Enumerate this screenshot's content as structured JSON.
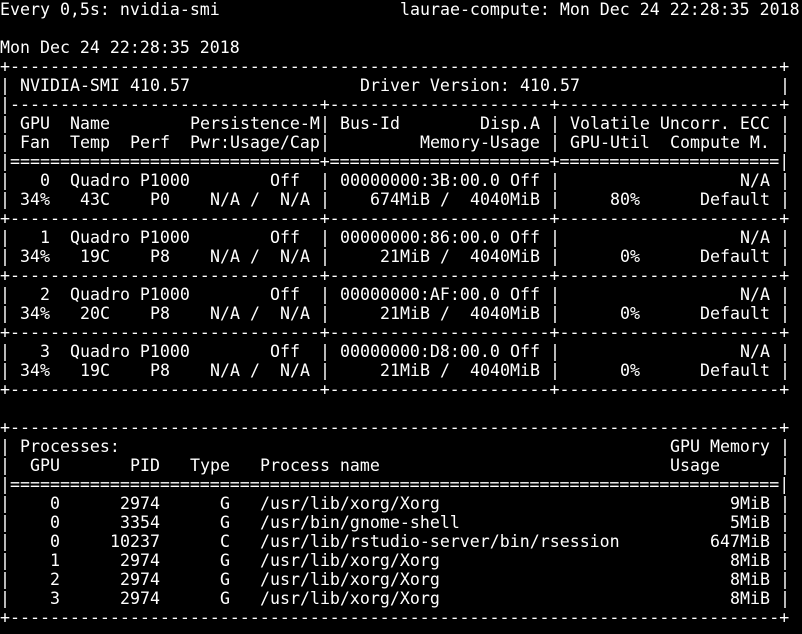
{
  "watch": {
    "command": "Every 0,5s: nvidia-smi",
    "host_time": "laurae-compute: Mon Dec 24 22:28:35 2018"
  },
  "timestamp": "Mon Dec 24 22:28:35 2018",
  "chars": {
    "pipe": "|"
  },
  "borders": {
    "top": "+-----------------------------------------------------------------------------+",
    "header_sep": "|-------------------------------+----------------------+----------------------+",
    "header_double": "|===============================+======================+======================|",
    "gpu_sep": "+-------------------------------+----------------------+----------------------+",
    "proc_double": "|=============================================================================|"
  },
  "header": {
    "smi_label": "NVIDIA-SMI",
    "smi_version": "410.57",
    "driver_label": "Driver Version:",
    "driver_version": "410.57"
  },
  "columns": {
    "gpu": "GPU",
    "name": "Name",
    "persistence": "Persistence-M",
    "bus_id": "Bus-Id",
    "disp": "Disp.A",
    "ecc": "Volatile Uncorr. ECC",
    "fan": "Fan",
    "temp": "Temp",
    "perf": "Perf",
    "power": "Pwr:Usage/Cap",
    "memory": "Memory-Usage",
    "util": "GPU-Util",
    "compute": "Compute M."
  },
  "gpus": [
    {
      "index": "0",
      "name": "Quadro P1000",
      "persistence": "Off",
      "bus_id": "00000000:3B:00.0",
      "disp": "Off",
      "ecc": "N/A",
      "fan": "34%",
      "temp": "43C",
      "perf": "P0",
      "pwr_usage": "N/A",
      "slash": "/",
      "pwr_cap": "N/A",
      "mem_used": "674MiB",
      "mem_total": "4040MiB",
      "util": "80%",
      "compute": "Default"
    },
    {
      "index": "1",
      "name": "Quadro P1000",
      "persistence": "Off",
      "bus_id": "00000000:86:00.0",
      "disp": "Off",
      "ecc": "N/A",
      "fan": "34%",
      "temp": "19C",
      "perf": "P8",
      "pwr_usage": "N/A",
      "slash": "/",
      "pwr_cap": "N/A",
      "mem_used": "21MiB",
      "mem_total": "4040MiB",
      "util": "0%",
      "compute": "Default"
    },
    {
      "index": "2",
      "name": "Quadro P1000",
      "persistence": "Off",
      "bus_id": "00000000:AF:00.0",
      "disp": "Off",
      "ecc": "N/A",
      "fan": "34%",
      "temp": "20C",
      "perf": "P8",
      "pwr_usage": "N/A",
      "slash": "/",
      "pwr_cap": "N/A",
      "mem_used": "21MiB",
      "mem_total": "4040MiB",
      "util": "0%",
      "compute": "Default"
    },
    {
      "index": "3",
      "name": "Quadro P1000",
      "persistence": "Off",
      "bus_id": "00000000:D8:00.0",
      "disp": "Off",
      "ecc": "N/A",
      "fan": "34%",
      "temp": "19C",
      "perf": "P8",
      "pwr_usage": "N/A",
      "slash": "/",
      "pwr_cap": "N/A",
      "mem_used": "21MiB",
      "mem_total": "4040MiB",
      "util": "0%",
      "compute": "Default"
    }
  ],
  "processes": {
    "title": "Processes:",
    "col_mem_1": "GPU Memory",
    "col_gpu": "GPU",
    "col_pid": "PID",
    "col_type": "Type",
    "col_name": "Process name",
    "col_mem_2": "Usage",
    "rows": [
      {
        "gpu": "0",
        "pid": "2974",
        "type": "G",
        "name": "/usr/lib/xorg/Xorg",
        "mem": "9MiB"
      },
      {
        "gpu": "0",
        "pid": "3354",
        "type": "G",
        "name": "/usr/bin/gnome-shell",
        "mem": "5MiB"
      },
      {
        "gpu": "0",
        "pid": "10237",
        "type": "C",
        "name": "/usr/lib/rstudio-server/bin/rsession",
        "mem": "647MiB"
      },
      {
        "gpu": "1",
        "pid": "2974",
        "type": "G",
        "name": "/usr/lib/xorg/Xorg",
        "mem": "8MiB"
      },
      {
        "gpu": "2",
        "pid": "2974",
        "type": "G",
        "name": "/usr/lib/xorg/Xorg",
        "mem": "8MiB"
      },
      {
        "gpu": "3",
        "pid": "2974",
        "type": "G",
        "name": "/usr/lib/xorg/Xorg",
        "mem": "8MiB"
      }
    ]
  }
}
